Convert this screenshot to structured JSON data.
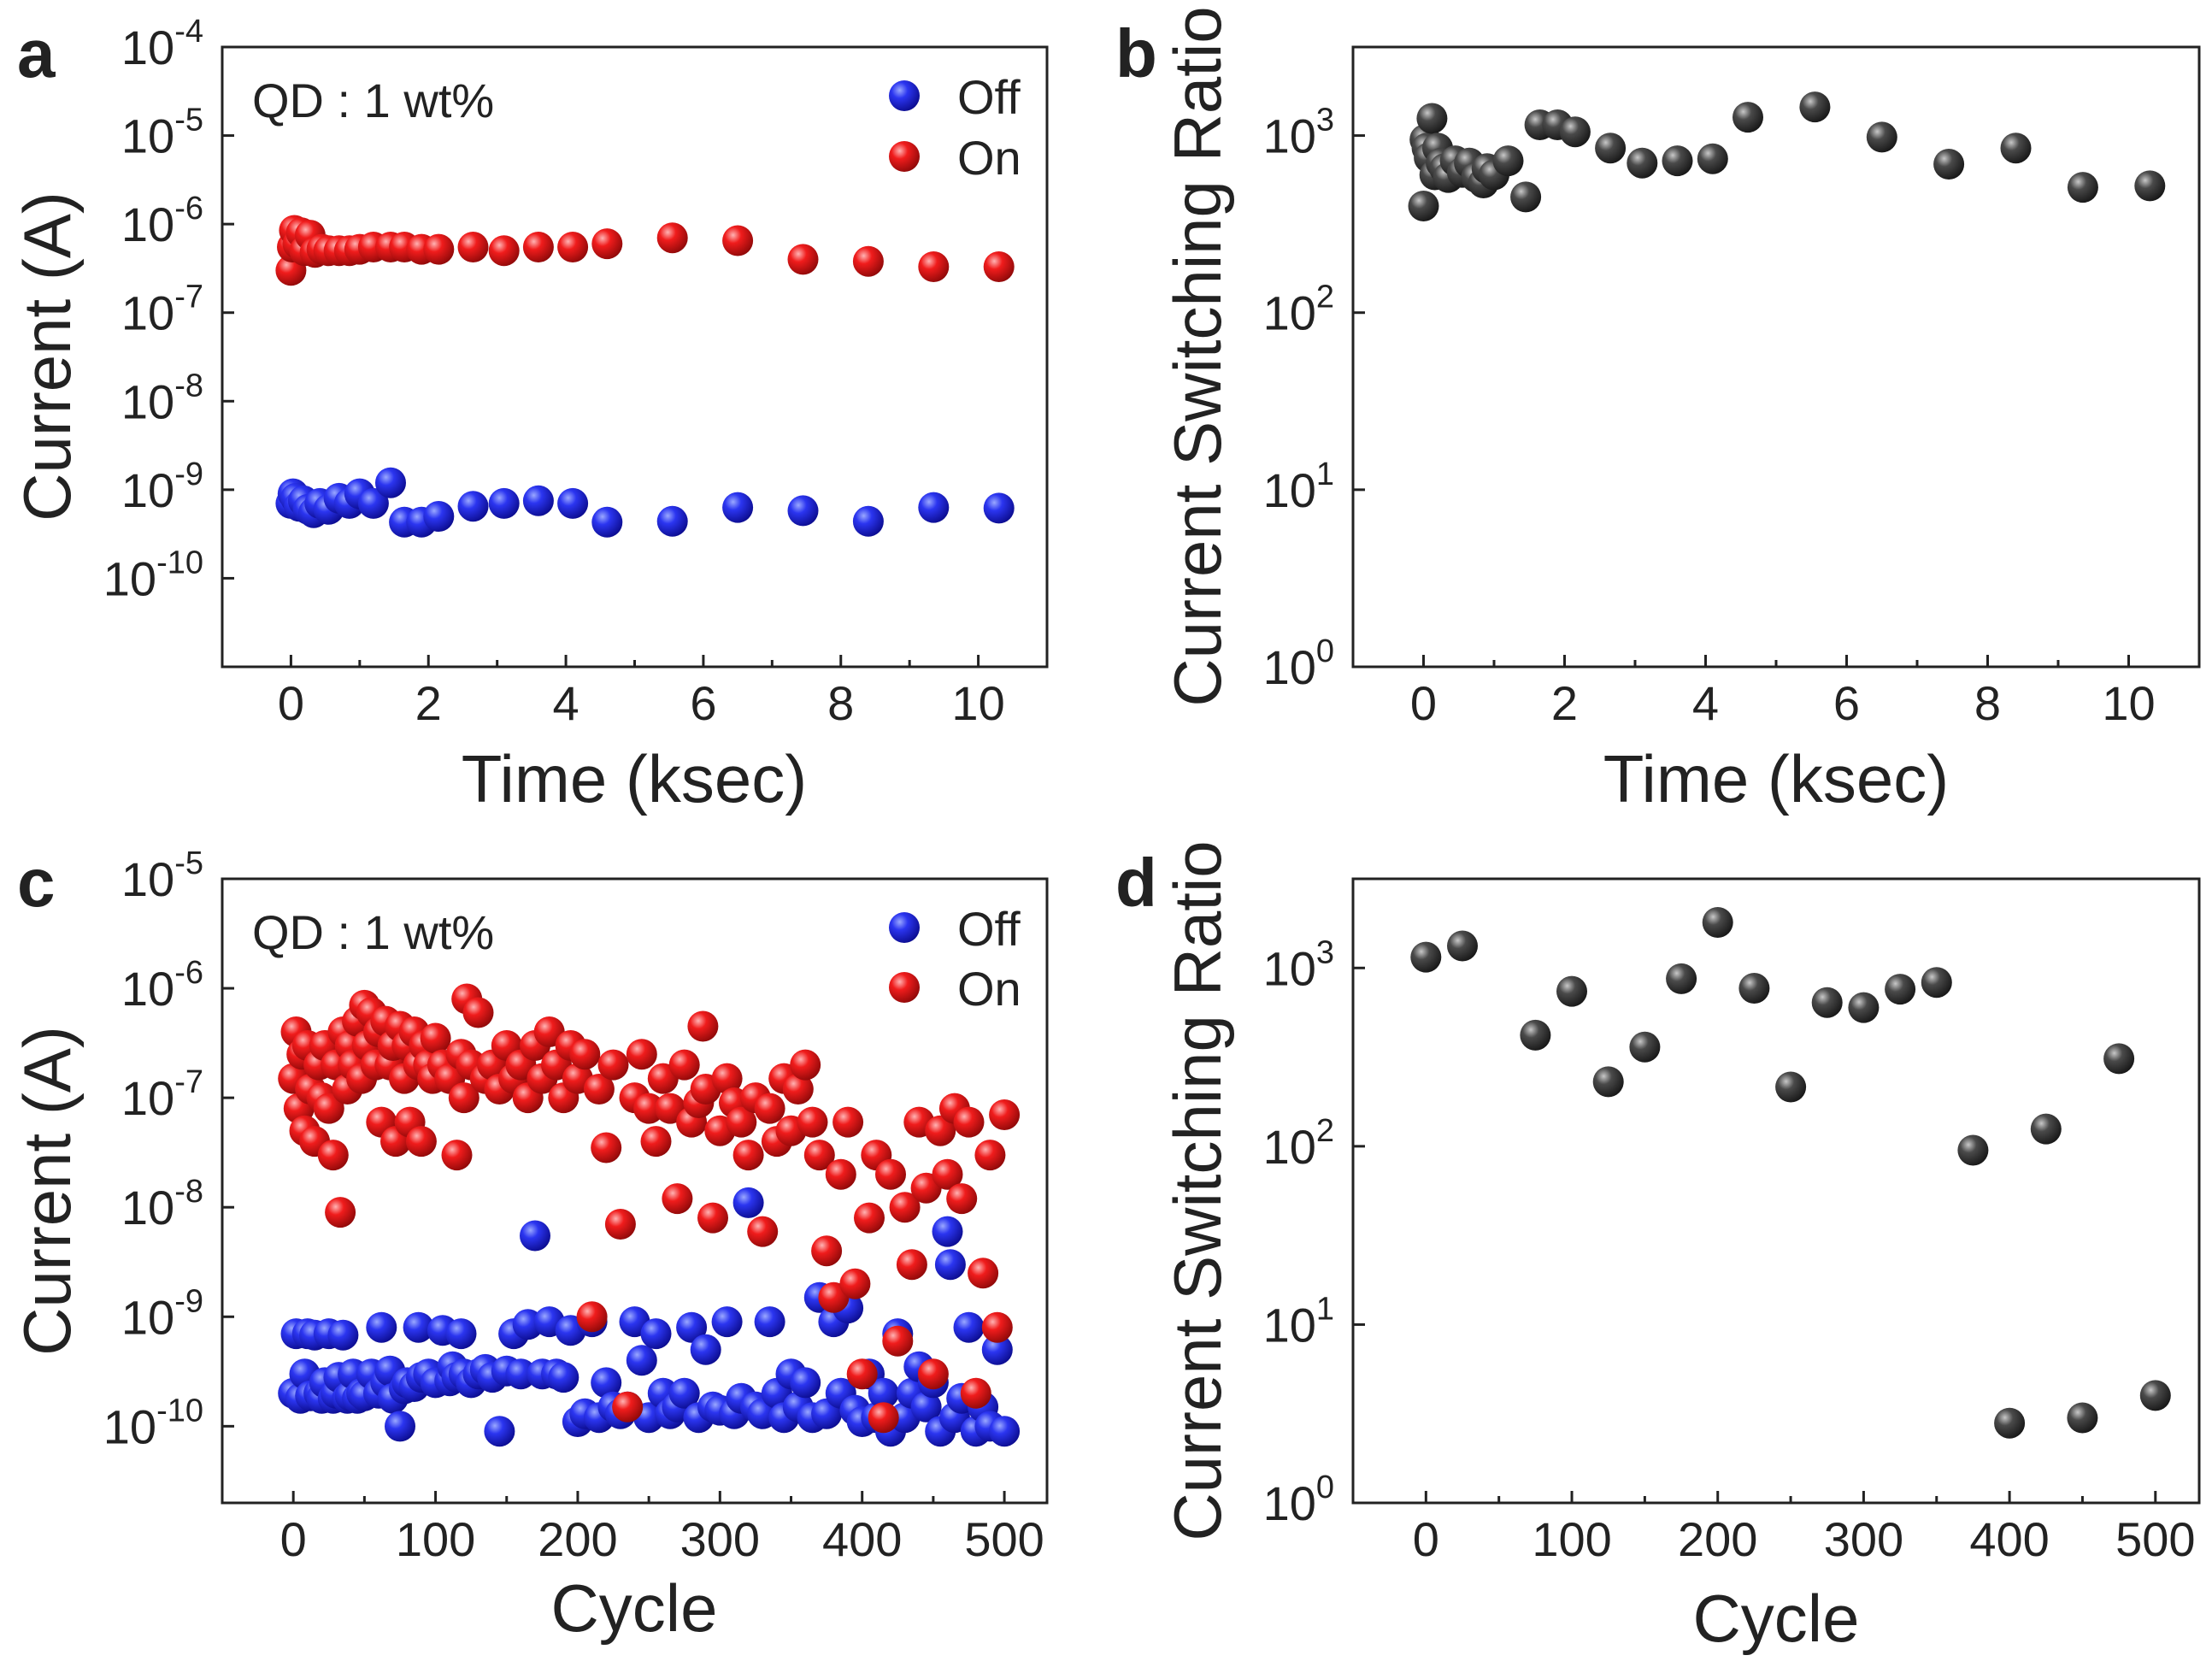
{
  "chart_data": [
    {
      "panel": "a",
      "type": "scatter",
      "annotation": "QD : 1 wt%",
      "xlabel": "Time (ksec)",
      "ylabel": "Current (A)",
      "xlim": [
        -1,
        11
      ],
      "xticks": [
        0,
        2,
        4,
        6,
        8,
        10
      ],
      "ylog": true,
      "ylim_exp": [
        -11,
        -4
      ],
      "ytick_exps": [
        -10,
        -9,
        -8,
        -7,
        -6,
        -5,
        -4
      ],
      "legend": "top-right",
      "series": [
        {
          "name": "Off",
          "color": "#1a1ad6",
          "x": [
            0.0,
            0.03,
            0.07,
            0.12,
            0.18,
            0.25,
            0.33,
            0.42,
            0.55,
            0.7,
            0.85,
            1.0,
            1.2,
            1.45,
            1.65,
            1.9,
            2.15,
            2.65,
            3.1,
            3.6,
            4.1,
            4.6,
            5.55,
            6.5,
            7.45,
            8.4,
            9.35,
            10.3
          ],
          "y": [
            7e-10,
            9e-10,
            8e-10,
            6.5e-10,
            7.5e-10,
            6e-10,
            5.5e-10,
            7e-10,
            6e-10,
            8e-10,
            7e-10,
            9e-10,
            7e-10,
            1.2e-09,
            4.3e-10,
            4.3e-10,
            5e-10,
            6.5e-10,
            7e-10,
            7.5e-10,
            7e-10,
            4.3e-10,
            4.4e-10,
            6.3e-10,
            5.8e-10,
            4.4e-10,
            6.3e-10,
            6.2e-10
          ]
        },
        {
          "name": "On",
          "color": "#e81414",
          "x": [
            0.0,
            0.02,
            0.05,
            0.1,
            0.15,
            0.2,
            0.28,
            0.35,
            0.45,
            0.55,
            0.7,
            0.85,
            1.0,
            1.2,
            1.45,
            1.65,
            1.9,
            2.15,
            2.65,
            3.1,
            3.6,
            4.1,
            4.6,
            5.55,
            6.5,
            7.45,
            8.4,
            9.35,
            10.3
          ],
          "y": [
            3e-07,
            5.5e-07,
            8.5e-07,
            6e-07,
            8e-07,
            5e-07,
            7.5e-07,
            4.8e-07,
            5.2e-07,
            5e-07,
            5e-07,
            5e-07,
            5.2e-07,
            5.5e-07,
            5.5e-07,
            5.5e-07,
            5.2e-07,
            5.2e-07,
            5.5e-07,
            5e-07,
            5.5e-07,
            5.5e-07,
            6e-07,
            7e-07,
            6.5e-07,
            4e-07,
            3.8e-07,
            3.3e-07,
            3.3e-07
          ]
        }
      ]
    },
    {
      "panel": "b",
      "type": "scatter",
      "xlabel": "Time (ksec)",
      "ylabel": "Current Switching Ratio",
      "xlim": [
        -1,
        11
      ],
      "xticks": [
        0,
        2,
        4,
        6,
        8,
        10
      ],
      "ylog": true,
      "ylim_exp": [
        0,
        3.5
      ],
      "ytick_exps": [
        0,
        1,
        2,
        3
      ],
      "series": [
        {
          "name": "Ratio",
          "color": "#3a3a3a",
          "x": [
            0.0,
            0.02,
            0.05,
            0.08,
            0.12,
            0.16,
            0.2,
            0.25,
            0.3,
            0.35,
            0.45,
            0.55,
            0.65,
            0.75,
            0.85,
            0.9,
            1.0,
            1.2,
            1.45,
            1.65,
            1.9,
            2.15,
            2.65,
            3.1,
            3.6,
            4.1,
            4.6,
            5.55,
            6.5,
            7.45,
            8.4,
            9.35,
            10.3
          ],
          "y": [
            400,
            950,
            850,
            750,
            1250,
            600,
            850,
            700,
            650,
            580,
            720,
            620,
            700,
            580,
            540,
            650,
            600,
            720,
            450,
            1150,
            1150,
            1050,
            850,
            700,
            720,
            740,
            1270,
            1450,
            980,
            690,
            850,
            510,
            520
          ]
        }
      ]
    },
    {
      "panel": "c",
      "type": "scatter",
      "annotation": "QD : 1 wt%",
      "xlabel": "Cycle",
      "ylabel": "Current (A)",
      "xlim": [
        -50,
        530
      ],
      "xticks": [
        0,
        100,
        200,
        300,
        400,
        500
      ],
      "ylog": true,
      "ylim_exp": [
        -10.7,
        -5
      ],
      "ytick_exps": [
        -10,
        -9,
        -8,
        -7,
        -6,
        -5
      ],
      "legend": "top-right",
      "series": [
        {
          "name": "Off",
          "color": "#1a1ad6",
          "x": [
            0,
            2,
            5,
            8,
            10,
            12,
            15,
            18,
            20,
            22,
            25,
            28,
            30,
            32,
            35,
            38,
            40,
            42,
            45,
            48,
            50,
            55,
            60,
            62,
            65,
            68,
            70,
            75,
            78,
            80,
            85,
            88,
            90,
            95,
            100,
            105,
            110,
            112,
            115,
            118,
            120,
            125,
            130,
            135,
            140,
            145,
            150,
            155,
            160,
            165,
            170,
            175,
            180,
            185,
            190,
            195,
            200,
            205,
            210,
            215,
            220,
            225,
            230,
            235,
            240,
            245,
            250,
            255,
            260,
            265,
            270,
            275,
            280,
            285,
            290,
            295,
            300,
            305,
            310,
            315,
            320,
            325,
            330,
            335,
            340,
            345,
            350,
            355,
            360,
            365,
            370,
            375,
            380,
            385,
            390,
            395,
            400,
            405,
            410,
            415,
            420,
            425,
            430,
            435,
            440,
            445,
            450,
            455,
            460,
            462,
            465,
            470,
            475,
            480,
            485,
            490,
            495,
            500
          ],
          "y": [
            2e-10,
            7e-10,
            1.8e-10,
            3e-10,
            7e-10,
            1.9e-10,
            6.8e-10,
            2e-10,
            1.8e-10,
            2.5e-10,
            7e-10,
            1.8e-10,
            2e-10,
            2.8e-10,
            6.8e-10,
            1.8e-10,
            1.9e-10,
            3e-10,
            1.8e-10,
            2e-10,
            1.9e-10,
            3e-10,
            2e-10,
            8e-10,
            2.5e-10,
            3.2e-10,
            1.8e-10,
            1e-10,
            2.2e-10,
            2.5e-10,
            2.3e-10,
            8e-10,
            2.8e-10,
            3e-10,
            2.5e-10,
            7.5e-10,
            2.6e-10,
            3.5e-10,
            2.8e-10,
            7e-10,
            3e-10,
            2.5e-10,
            3e-10,
            3.3e-10,
            2.8e-10,
            9e-11,
            3.2e-10,
            7e-10,
            3e-10,
            8.5e-10,
            5.5e-09,
            3e-10,
            9e-10,
            3e-10,
            2.8e-10,
            7.5e-10,
            1.1e-10,
            1.3e-10,
            9e-10,
            1.2e-10,
            2.5e-10,
            1.5e-10,
            1.3e-10,
            1.5e-10,
            9e-10,
            4e-10,
            1.2e-10,
            7e-10,
            2e-10,
            1.3e-10,
            1.5e-10,
            2e-10,
            8e-10,
            1.2e-10,
            5e-10,
            1.5e-10,
            1.4e-10,
            9e-10,
            1.3e-10,
            1.8e-10,
            1.1e-08,
            1.5e-10,
            1.3e-10,
            9e-10,
            2e-10,
            1.2e-10,
            3e-10,
            1.5e-10,
            2.5e-10,
            1.2e-10,
            1.5e-09,
            1.3e-10,
            9e-10,
            2e-10,
            1.2e-09,
            1.4e-10,
            1.1e-10,
            3e-10,
            1.2e-10,
            2e-10,
            9e-11,
            7e-10,
            1.2e-10,
            2e-10,
            3.5e-10,
            1.5e-10,
            2.5e-10,
            9e-11,
            6e-09,
            3e-09,
            1.2e-10,
            1.8e-10,
            8e-10,
            9e-11,
            1.5e-10,
            1e-10,
            5e-10,
            9e-11
          ]
        },
        {
          "name": "On",
          "color": "#e81414",
          "x": [
            0,
            2,
            4,
            6,
            8,
            10,
            12,
            15,
            18,
            20,
            22,
            25,
            28,
            30,
            33,
            35,
            38,
            40,
            42,
            45,
            48,
            50,
            52,
            55,
            58,
            60,
            62,
            65,
            68,
            70,
            72,
            75,
            78,
            80,
            82,
            85,
            88,
            90,
            92,
            95,
            98,
            100,
            105,
            110,
            115,
            118,
            120,
            122,
            125,
            130,
            135,
            140,
            145,
            150,
            155,
            160,
            165,
            170,
            175,
            180,
            185,
            190,
            195,
            200,
            205,
            210,
            215,
            220,
            225,
            230,
            235,
            240,
            245,
            250,
            255,
            260,
            265,
            270,
            275,
            280,
            285,
            288,
            290,
            295,
            300,
            305,
            310,
            315,
            320,
            325,
            330,
            335,
            340,
            345,
            350,
            355,
            360,
            365,
            370,
            375,
            380,
            385,
            390,
            395,
            400,
            405,
            410,
            415,
            420,
            425,
            430,
            435,
            440,
            445,
            450,
            455,
            460,
            465,
            470,
            475,
            480,
            485,
            490,
            495,
            500
          ],
          "y": [
            1.5e-07,
            4e-07,
            8e-08,
            2.5e-07,
            5e-08,
            3e-07,
            1.2e-07,
            4e-08,
            2e-07,
            1e-07,
            3e-07,
            8e-08,
            3e-08,
            2e-07,
            9e-09,
            4e-07,
            1.2e-07,
            3e-07,
            2e-07,
            5e-07,
            1.5e-07,
            7e-07,
            3e-07,
            6e-07,
            2e-07,
            4e-07,
            6e-08,
            5e-07,
            2e-07,
            3e-07,
            4e-08,
            4.5e-07,
            1.5e-07,
            3e-07,
            6e-08,
            4e-07,
            2e-07,
            4e-08,
            3e-07,
            2e-07,
            1.5e-07,
            3.5e-07,
            2e-07,
            1.5e-07,
            3e-08,
            2.5e-07,
            1e-07,
            8e-07,
            2e-07,
            6e-07,
            1.5e-07,
            2e-07,
            1.2e-07,
            3e-07,
            1.5e-07,
            2e-07,
            1e-07,
            3e-07,
            1.5e-07,
            4e-07,
            2e-07,
            1e-07,
            3e-07,
            1.5e-07,
            2.5e-07,
            1e-09,
            1.2e-07,
            3.5e-08,
            2e-07,
            7e-09,
            1.5e-10,
            1e-07,
            2.5e-07,
            8e-08,
            4e-08,
            1.5e-07,
            8e-08,
            1.2e-08,
            2e-07,
            6e-08,
            9e-08,
            4.5e-07,
            1.2e-07,
            8e-09,
            5e-08,
            1.5e-07,
            9e-08,
            6e-08,
            3e-08,
            1e-07,
            6e-09,
            8e-08,
            4e-08,
            1.5e-07,
            5e-08,
            1.2e-07,
            2e-07,
            6e-08,
            3e-08,
            4e-09,
            1.5e-09,
            2e-08,
            6e-08,
            2e-09,
            3e-10,
            8e-09,
            3e-08,
            1.2e-10,
            2e-08,
            6e-10,
            1e-08,
            3e-09,
            6e-08,
            1.5e-08,
            3e-10,
            5e-08,
            2e-08,
            8e-08,
            1.2e-08,
            6e-08,
            2e-10,
            2.5e-09,
            3e-08,
            8e-10,
            7e-08
          ]
        }
      ]
    },
    {
      "panel": "d",
      "type": "scatter",
      "xlabel": "Cycle",
      "ylabel": "Current Switching Ratio",
      "xlim": [
        -50,
        530
      ],
      "xticks": [
        0,
        100,
        200,
        300,
        400,
        500
      ],
      "ylog": true,
      "ylim_exp": [
        0,
        3.5
      ],
      "ytick_exps": [
        0,
        1,
        2,
        3
      ],
      "series": [
        {
          "name": "Ratio",
          "color": "#3a3a3a",
          "x": [
            0,
            25,
            75,
            100,
            125,
            150,
            175,
            200,
            225,
            250,
            275,
            300,
            325,
            350,
            375,
            400,
            425,
            450,
            475,
            500
          ],
          "y": [
            1150,
            1330,
            420,
            740,
            230,
            360,
            870,
            1800,
            770,
            215,
            640,
            600,
            760,
            830,
            95,
            2.8,
            125,
            3.0,
            310,
            4.0
          ]
        }
      ]
    }
  ],
  "figure": {
    "base_label": "10",
    "legend_off": "Off",
    "legend_on": "On"
  }
}
